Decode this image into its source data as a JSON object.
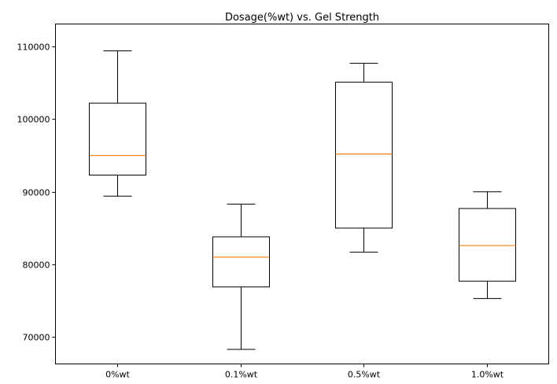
{
  "chart_data": {
    "type": "box",
    "title": "Dosage(%wt) vs. Gel Strength",
    "xlabel": "",
    "ylabel": "",
    "categories": [
      "0%wt",
      "0.1%wt",
      "0.5%wt",
      "1.0%wt"
    ],
    "boxes": [
      {
        "category": "0%wt",
        "whisker_low": 89400,
        "q1": 92300,
        "median": 95000,
        "q3": 102200,
        "whisker_high": 109400
      },
      {
        "category": "0.1%wt",
        "whisker_low": 68300,
        "q1": 76900,
        "median": 81000,
        "q3": 83800,
        "whisker_high": 88300
      },
      {
        "category": "0.5%wt",
        "whisker_low": 81700,
        "q1": 85000,
        "median": 95200,
        "q3": 105100,
        "whisker_high": 107700
      },
      {
        "category": "1.0%wt",
        "whisker_low": 75300,
        "q1": 77700,
        "median": 82600,
        "q3": 87700,
        "whisker_high": 90000
      }
    ],
    "ylim": [
      66300,
      113100
    ],
    "yticks": [
      70000,
      80000,
      90000,
      100000,
      110000
    ],
    "ytick_labels": [
      "70000",
      "80000",
      "90000",
      "100000",
      "110000"
    ],
    "grid": false,
    "legend": "none",
    "colors": {
      "box": "#000000",
      "median": "#ff7f0e"
    }
  }
}
